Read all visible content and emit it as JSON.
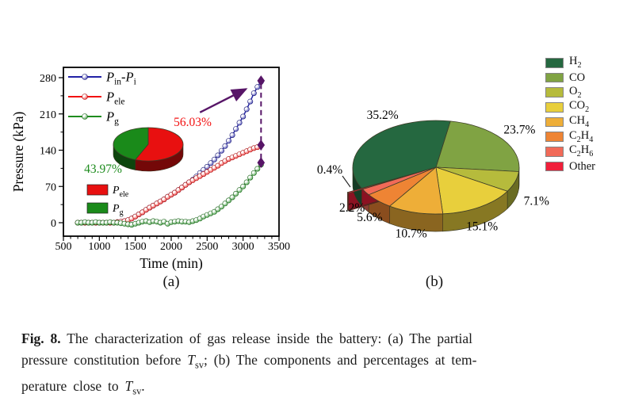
{
  "caption": {
    "segments": [
      {
        "text": "Fig. 8.",
        "bold": true
      },
      {
        "text": " The characterization of gas release inside the battery: (a) The partial"
      },
      {
        "br": true
      },
      {
        "text": "pressure constitution before "
      },
      {
        "text": "T",
        "italic": true
      },
      {
        "text": "sv",
        "sub": true
      },
      {
        "text": "; (b) The components and percentages at tem-"
      },
      {
        "br": true
      },
      {
        "text": "perature close to "
      },
      {
        "text": "T",
        "italic": true
      },
      {
        "text": "sv",
        "sub": true
      },
      {
        "text": "."
      }
    ]
  },
  "panel_a": {
    "label": "(a)",
    "xlabel": "Time (min)",
    "ylabel": "Pressure (kPa)"
  },
  "panel_b": {
    "label": "(b)"
  },
  "chart_data": [
    {
      "id": "partial-pressure-lines",
      "type": "line",
      "xlabel": "Time (min)",
      "ylabel": "Pressure (kPa)",
      "xlim": [
        500,
        3500
      ],
      "ylim": [
        0,
        280
      ],
      "x_ticks": [
        500,
        1000,
        1500,
        2000,
        2500,
        3000,
        3500
      ],
      "y_ticks": [
        0,
        70,
        140,
        210,
        280
      ],
      "x_minor_step": 100,
      "y_minor_step": 35,
      "x_start": 700,
      "x_step": 50,
      "grid": false,
      "legend_position": "upper-left-inside",
      "series": [
        {
          "name": "Pin-Pi",
          "parts": [
            [
              "P",
              "i"
            ],
            [
              "in",
              "s"
            ],
            [
              "-",
              "n"
            ],
            [
              "P",
              "i"
            ],
            [
              "i",
              "s"
            ]
          ],
          "color": "#2121a6",
          "values": [
            0,
            0,
            0,
            0,
            0,
            0,
            0,
            0,
            0,
            0,
            0,
            1,
            2,
            3,
            5,
            8,
            12,
            16,
            20,
            25,
            29,
            33,
            37,
            41,
            45,
            50,
            54,
            58,
            63,
            68,
            73,
            78,
            83,
            89,
            96,
            102,
            108,
            115,
            122,
            130,
            139,
            148,
            158,
            169,
            181,
            193,
            205,
            219,
            234,
            250,
            262,
            272
          ]
        },
        {
          "name": "Pele",
          "parts": [
            [
              "P",
              "i"
            ],
            [
              "ele",
              "s"
            ]
          ],
          "color": "#f21111",
          "values": [
            0,
            0,
            0,
            0,
            0,
            0,
            0,
            0,
            0,
            0,
            0,
            1,
            2,
            3,
            5,
            8,
            12,
            16,
            20,
            25,
            29,
            33,
            37,
            41,
            45,
            50,
            54,
            58,
            63,
            68,
            73,
            78,
            82,
            86,
            90,
            94,
            98,
            102,
            106,
            110,
            115,
            119,
            123,
            126,
            129,
            132,
            135,
            138,
            141,
            144,
            146,
            149
          ]
        },
        {
          "name": "Pg",
          "parts": [
            [
              "P",
              "i"
            ],
            [
              "g",
              "s"
            ]
          ],
          "color": "#1e8c1e",
          "values": [
            0,
            0,
            1,
            0,
            0,
            1,
            0,
            0,
            0,
            1,
            0,
            0,
            -1,
            -2,
            -3,
            -4,
            -2,
            0,
            2,
            3,
            1,
            3,
            2,
            0,
            2,
            -2,
            1,
            2,
            3,
            2,
            2,
            1,
            3,
            5,
            8,
            12,
            15,
            18,
            21,
            26,
            31,
            37,
            43,
            49,
            56,
            63,
            70,
            78,
            87,
            96,
            104,
            112
          ]
        }
      ],
      "annotation": {
        "dashed_line_x": 3250,
        "diamonds": [
          [
            3250,
            274
          ],
          [
            3250,
            150
          ],
          [
            3250,
            116
          ]
        ],
        "arrow_from": [
          2400,
          213
        ],
        "arrow_to": [
          3040,
          258
        ],
        "color": "#571567"
      }
    },
    {
      "id": "inset-pressure-pie",
      "type": "pie",
      "start_angle": 0,
      "slices": [
        {
          "name": "Pele",
          "parts": [
            [
              "P",
              "i"
            ],
            [
              "ele",
              "s"
            ]
          ],
          "pct": 56.03,
          "label": "56.03%",
          "color": "#e81010",
          "label_color": "#f21111"
        },
        {
          "name": "Pg",
          "parts": [
            [
              "P",
              "i"
            ],
            [
              "g",
              "s"
            ]
          ],
          "pct": 43.97,
          "label": "43.97%",
          "color": "#1a8a1a",
          "label_color": "#1e8c1e"
        }
      ]
    },
    {
      "id": "gas-composition-pie",
      "type": "pie3d",
      "start_angle": 10,
      "draw_order": [
        "CO",
        "O2",
        "CO2",
        "CH4",
        "C2H4",
        "C2H6",
        "Other",
        "H2"
      ],
      "slices": [
        {
          "name": "H2",
          "parts": [
            [
              "H",
              ""
            ],
            [
              "2",
              "s"
            ]
          ],
          "pct": 35.2,
          "label": "35.2%",
          "color": "#256840"
        },
        {
          "name": "CO",
          "parts": [
            [
              "CO",
              ""
            ]
          ],
          "pct": 23.7,
          "label": "23.7%",
          "color": "#80a343"
        },
        {
          "name": "O2",
          "parts": [
            [
              "O",
              ""
            ],
            [
              "2",
              "s"
            ]
          ],
          "pct": 7.1,
          "label": "7.1%",
          "color": "#b6bb3c"
        },
        {
          "name": "CO2",
          "parts": [
            [
              "CO",
              ""
            ],
            [
              "2",
              "s"
            ]
          ],
          "pct": 15.1,
          "label": "15.1%",
          "color": "#e8cf3c"
        },
        {
          "name": "CH4",
          "parts": [
            [
              "CH",
              ""
            ],
            [
              "4",
              "s"
            ]
          ],
          "pct": 10.7,
          "label": "10.7%",
          "color": "#eeae38"
        },
        {
          "name": "C2H4",
          "parts": [
            [
              "C",
              ""
            ],
            [
              "2",
              "s"
            ],
            [
              "H",
              ""
            ],
            [
              "4",
              "s"
            ]
          ],
          "pct": 5.6,
          "label": "5.6%",
          "color": "#ee8434"
        },
        {
          "name": "C2H6",
          "parts": [
            [
              "C",
              ""
            ],
            [
              "2",
              "s"
            ],
            [
              "H",
              ""
            ],
            [
              "6",
              "s"
            ]
          ],
          "pct": 2.2,
          "label": "2.2%",
          "color": "#f16a58"
        },
        {
          "name": "Other",
          "parts": [
            [
              "Other",
              ""
            ]
          ],
          "pct": 0.4,
          "label": "0.4%",
          "color": "#f01f3a",
          "exploded": true
        }
      ]
    }
  ]
}
